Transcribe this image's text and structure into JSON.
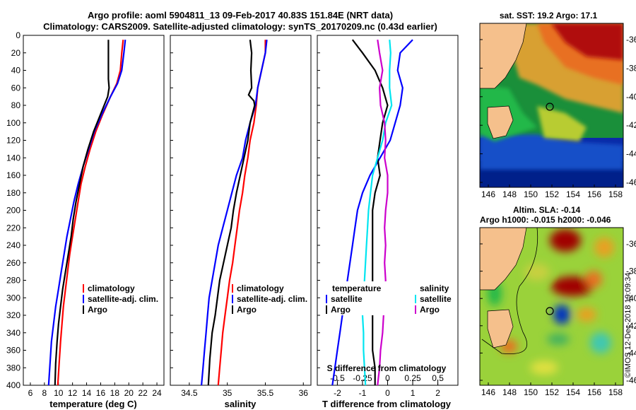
{
  "header": {
    "title_line1": "Argo profile: aoml 5904811_13 09-Feb-2017 40.83S 151.84E (NRT data)",
    "title_line2": "Climatology: CARS2009. Satellite-adjusted climatology: synTS_20170209.nc (0.43d earlier)"
  },
  "colors": {
    "climatology": "#ff0000",
    "satellite": "#0000ff",
    "argo": "#000000",
    "sat_salinity": "#00e5f0",
    "argo_salinity": "#cc00cc"
  },
  "chart_data": [
    {
      "type": "line",
      "panel": "temperature",
      "xlabel": "temperature (deg C)",
      "ylabel": "",
      "xlim": [
        5,
        25
      ],
      "ylim": [
        400,
        0
      ],
      "xticks": [
        "6",
        "8",
        "10",
        "12",
        "14",
        "16",
        "18",
        "20",
        "22",
        "24"
      ],
      "yticks": [
        "0",
        "20",
        "40",
        "60",
        "80",
        "100",
        "120",
        "140",
        "160",
        "180",
        "200",
        "220",
        "240",
        "260",
        "280",
        "300",
        "320",
        "340",
        "360",
        "380",
        "400"
      ],
      "legend": [
        "climatology",
        "satellite-adj. clim.",
        "Argo"
      ],
      "series": [
        {
          "name": "climatology",
          "x": [
            19.2,
            19,
            18.8,
            18.3,
            17.4,
            16.3,
            15.3,
            14.5,
            13.8,
            13.2,
            12.8,
            12.4,
            12.0,
            11.6,
            11.3,
            11.0,
            10.7,
            10.5,
            10.3,
            10.1,
            9.9
          ],
          "y": [
            5,
            20,
            40,
            55,
            70,
            90,
            110,
            130,
            150,
            170,
            190,
            210,
            230,
            250,
            270,
            290,
            310,
            330,
            350,
            375,
            400
          ]
        },
        {
          "name": "satellite-adj. clim.",
          "x": [
            19.5,
            19.3,
            19,
            18.4,
            17.4,
            16.2,
            15.1,
            14.3,
            13.5,
            12.8,
            12.2,
            11.7,
            11.2,
            10.8,
            10.4,
            10.0,
            9.6,
            9.3,
            9.0,
            8.8,
            8.6
          ],
          "y": [
            5,
            20,
            40,
            55,
            70,
            90,
            110,
            130,
            150,
            170,
            190,
            210,
            230,
            250,
            270,
            290,
            310,
            330,
            350,
            375,
            400
          ]
        },
        {
          "name": "Argo",
          "x": [
            17.1,
            17.1,
            17.1,
            17.2,
            17.0,
            16.0,
            15.0,
            14.2,
            13.5,
            13.0,
            12.5,
            12.1,
            11.8,
            11.4,
            11.0,
            10.6,
            10.3,
            10.0,
            9.8,
            9.6,
            9.5
          ],
          "y": [
            5,
            25,
            50,
            60,
            70,
            90,
            110,
            130,
            150,
            170,
            190,
            210,
            230,
            250,
            270,
            290,
            310,
            330,
            350,
            375,
            400
          ]
        }
      ]
    },
    {
      "type": "line",
      "panel": "salinity",
      "xlabel": "salinity",
      "xlim": [
        34.25,
        36.1
      ],
      "ylim": [
        400,
        0
      ],
      "xticks": [
        "34.5",
        "35",
        "35.5",
        "36"
      ],
      "legend": [
        "climatology",
        "satellite-adj. clim.",
        "Argo"
      ],
      "series": [
        {
          "name": "climatology",
          "x": [
            35.5,
            35.5,
            35.45,
            35.4,
            35.38,
            35.35,
            35.3,
            35.27,
            35.23,
            35.2,
            35.16,
            35.13,
            35.1,
            35.07,
            35.03,
            35.0,
            34.97,
            34.94,
            34.92,
            34.9,
            34.88
          ],
          "y": [
            5,
            20,
            40,
            60,
            80,
            100,
            120,
            140,
            160,
            180,
            200,
            220,
            240,
            260,
            280,
            300,
            320,
            340,
            360,
            380,
            400
          ]
        },
        {
          "name": "satellite-adj. clim.",
          "x": [
            35.52,
            35.5,
            35.45,
            35.4,
            35.37,
            35.3,
            35.24,
            35.2,
            35.12,
            35.06,
            35.0,
            34.94,
            34.88,
            34.84,
            34.8,
            34.76,
            34.74,
            34.72,
            34.7,
            34.68,
            34.66
          ],
          "y": [
            5,
            20,
            40,
            60,
            80,
            100,
            120,
            140,
            160,
            180,
            200,
            220,
            240,
            260,
            280,
            300,
            320,
            340,
            360,
            380,
            400
          ]
        },
        {
          "name": "Argo",
          "x": [
            35.3,
            35.32,
            35.31,
            35.32,
            35.28,
            35.35,
            35.36,
            35.3,
            35.27,
            35.22,
            35.12,
            35.08,
            35.05,
            35.0,
            34.95,
            34.9,
            34.87,
            34.84,
            34.8,
            34.77,
            34.75
          ],
          "y": [
            5,
            20,
            40,
            60,
            68,
            75,
            80,
            100,
            120,
            140,
            180,
            200,
            220,
            240,
            260,
            280,
            300,
            320,
            340,
            370,
            400
          ]
        }
      ]
    },
    {
      "type": "line",
      "panel": "difference",
      "xlabel": "T difference from climatology",
      "xlabel_top": "S difference from climatology",
      "xlim": [
        -2.8,
        2.8
      ],
      "ylim": [
        400,
        0
      ],
      "xticks": [
        "-2",
        "-1",
        "0",
        "1",
        "2"
      ],
      "xticks_salinity": [
        "-0.5",
        "-0.25",
        "0",
        "0.25",
        "0.5"
      ],
      "legend_temperature_title": "temperature",
      "legend_salinity_title": "salinity",
      "legend_temperature": [
        "satellite",
        "Argo"
      ],
      "legend_salinity": [
        "satellite",
        "Argo"
      ],
      "series": [
        {
          "name": "temperature satellite",
          "x": [
            1.0,
            0.5,
            0.4,
            0.6,
            0.5,
            0.3,
            0.1,
            -0.3,
            -0.7,
            -1.0,
            -1.2,
            -1.3,
            -1.4,
            -1.5,
            -1.6,
            -1.7,
            -1.8,
            -1.9,
            -2.0,
            -2.1,
            -2.2
          ],
          "y": [
            5,
            20,
            40,
            60,
            80,
            100,
            120,
            140,
            160,
            180,
            200,
            220,
            240,
            260,
            280,
            300,
            320,
            340,
            360,
            380,
            400
          ]
        },
        {
          "name": "temperature Argo",
          "x": [
            -1.4,
            -1.0,
            -0.5,
            -0.2,
            0.0,
            -0.2,
            -0.3,
            -0.4,
            -0.3,
            -0.5,
            -0.6,
            -0.6,
            -0.6,
            -0.6,
            -0.6,
            -0.6,
            -0.6,
            -0.6,
            -0.6,
            -0.5,
            -0.5
          ],
          "y": [
            5,
            20,
            40,
            60,
            80,
            100,
            120,
            140,
            160,
            180,
            200,
            220,
            240,
            260,
            280,
            300,
            320,
            340,
            360,
            380,
            400
          ]
        },
        {
          "name": "salinity satellite",
          "x": [
            0.02,
            0.03,
            0.02,
            0.02,
            0.04,
            -0.02,
            -0.05,
            -0.1,
            -0.15,
            -0.17,
            -0.19,
            -0.2,
            -0.21,
            -0.22,
            -0.23,
            -0.24,
            -0.25,
            -0.24,
            -0.24,
            -0.23,
            -0.22
          ],
          "y": [
            5,
            20,
            40,
            60,
            80,
            100,
            120,
            140,
            160,
            180,
            200,
            220,
            240,
            260,
            280,
            300,
            320,
            340,
            360,
            380,
            400
          ]
        },
        {
          "name": "salinity Argo",
          "x": [
            -0.1,
            -0.08,
            -0.05,
            -0.08,
            -0.07,
            -0.03,
            -0.02,
            -0.03,
            0.0,
            0.0,
            -0.02,
            -0.03,
            -0.02,
            -0.03,
            -0.02,
            -0.03,
            -0.04,
            -0.05,
            -0.07,
            -0.08,
            -0.1
          ],
          "y": [
            5,
            20,
            40,
            60,
            80,
            100,
            120,
            140,
            160,
            180,
            200,
            220,
            240,
            260,
            280,
            300,
            320,
            340,
            360,
            380,
            400
          ]
        }
      ]
    },
    {
      "type": "heatmap",
      "panel": "sst_map",
      "title": "sat. SST: 19.2 Argo: 17.1",
      "xticks": [
        "146",
        "148",
        "150",
        "152",
        "154",
        "156",
        "158"
      ],
      "yticks": [
        "-36",
        "-38",
        "-40",
        "-42",
        "-44",
        "-46"
      ],
      "marker": {
        "lon": 151.84,
        "lat": -40.83
      }
    },
    {
      "type": "heatmap",
      "panel": "sla_map",
      "title_line1": "Altim. SLA: -0.14",
      "title_line2": "Argo h1000: -0.015 h2000: -0.046",
      "xticks": [
        "146",
        "148",
        "150",
        "152",
        "154",
        "156",
        "158"
      ],
      "yticks": [
        "-36",
        "-38",
        "-40",
        "-42",
        "-44",
        "-46"
      ],
      "marker": {
        "lon": 151.84,
        "lat": -40.83
      }
    }
  ],
  "footer": {
    "credit": "©IMOS 12-Dec-2018 19:09:34"
  }
}
